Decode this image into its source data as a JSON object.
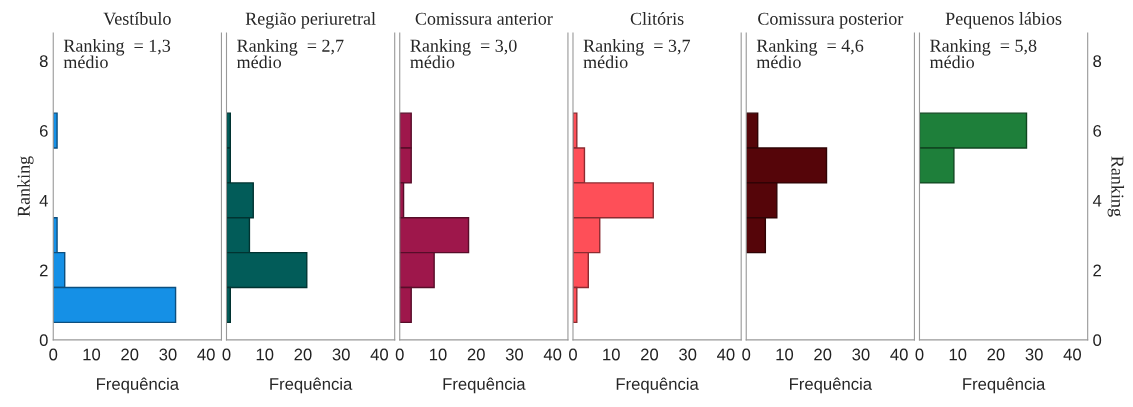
{
  "chart_data": [
    {
      "type": "bar",
      "orientation": "horizontal",
      "title": "Vestíbulo",
      "xlabel": "Frequência",
      "ylabel": "Ranking",
      "annotations": [
        "Ranking  = 1,3\nmédio"
      ],
      "x": [
        6,
        5,
        4,
        3,
        2,
        1
      ],
      "values": [
        1,
        0,
        0,
        1,
        3,
        32
      ],
      "color": "#1590e6",
      "xlim": [
        0,
        44
      ],
      "xticks": [
        0,
        10,
        20,
        30,
        40
      ],
      "ylim": [
        0,
        8.8
      ],
      "yticks": [
        0,
        2,
        4,
        6,
        8
      ]
    },
    {
      "type": "bar",
      "orientation": "horizontal",
      "title": "Região periuretral",
      "xlabel": "Frequência",
      "annotations": [
        "Ranking  = 2,7\nmédio"
      ],
      "x": [
        6,
        5,
        4,
        3,
        2,
        1
      ],
      "values": [
        1,
        1,
        7,
        6,
        21,
        1
      ],
      "color": "#025c59",
      "xlim": [
        0,
        44
      ],
      "xticks": [
        0,
        10,
        20,
        30,
        40
      ],
      "ylim": [
        0,
        8.8
      ],
      "yticks": [
        0,
        2,
        4,
        6,
        8
      ],
      "tick_labels": "x"
    },
    {
      "type": "bar",
      "orientation": "horizontal",
      "title": "Comissura anterior",
      "xlabel": "Frequência",
      "annotations": [
        "Ranking  = 3,0\nmédio"
      ],
      "x": [
        6,
        5,
        4,
        3,
        2,
        1
      ],
      "values": [
        3,
        3,
        1,
        18,
        9,
        3
      ],
      "color": "#9e174b",
      "xlim": [
        0,
        44
      ],
      "xticks": [
        0,
        10,
        20,
        30,
        40
      ],
      "ylim": [
        0,
        8.8
      ],
      "yticks": [
        0,
        2,
        4,
        6,
        8
      ],
      "tick_labels": "x"
    },
    {
      "type": "bar",
      "orientation": "horizontal",
      "title": "Clitóris",
      "xlabel": "Frequência",
      "annotations": [
        "Ranking  = 3,7\nmédio"
      ],
      "x": [
        6,
        5,
        4,
        3,
        2,
        1
      ],
      "values": [
        1,
        3,
        21,
        7,
        4,
        1
      ],
      "color": "#fe4f58",
      "xlim": [
        0,
        44
      ],
      "xticks": [
        0,
        10,
        20,
        30,
        40
      ],
      "ylim": [
        0,
        8.8
      ],
      "yticks": [
        0,
        2,
        4,
        6,
        8
      ],
      "tick_labels": "x"
    },
    {
      "type": "bar",
      "orientation": "horizontal",
      "title": "Comissura posterior",
      "xlabel": "Frequência",
      "annotations": [
        "Ranking  = 4,6\nmédio"
      ],
      "x": [
        6,
        5,
        4,
        3,
        2,
        1
      ],
      "values": [
        3,
        21,
        8,
        5,
        0,
        0
      ],
      "color": "#550509",
      "xlim": [
        0,
        44
      ],
      "xticks": [
        0,
        10,
        20,
        30,
        40
      ],
      "ylim": [
        0,
        8.8
      ],
      "yticks": [
        0,
        2,
        4,
        6,
        8
      ],
      "tick_labels": "x"
    },
    {
      "type": "bar",
      "orientation": "horizontal",
      "title": "Pequenos lábios",
      "xlabel": "Frequência",
      "y2label": "Ranking",
      "annotations": [
        "Ranking  = 5,8\nmédio"
      ],
      "x": [
        6,
        5,
        4,
        3,
        2,
        1
      ],
      "values": [
        28,
        9,
        0,
        0,
        0,
        0
      ],
      "color": "#1e7f3a",
      "xlim": [
        0,
        44
      ],
      "xticks": [
        0,
        10,
        20,
        30,
        40
      ],
      "ylim": [
        0,
        8.8
      ],
      "yticks": [
        0,
        2,
        4,
        6,
        8
      ]
    }
  ]
}
